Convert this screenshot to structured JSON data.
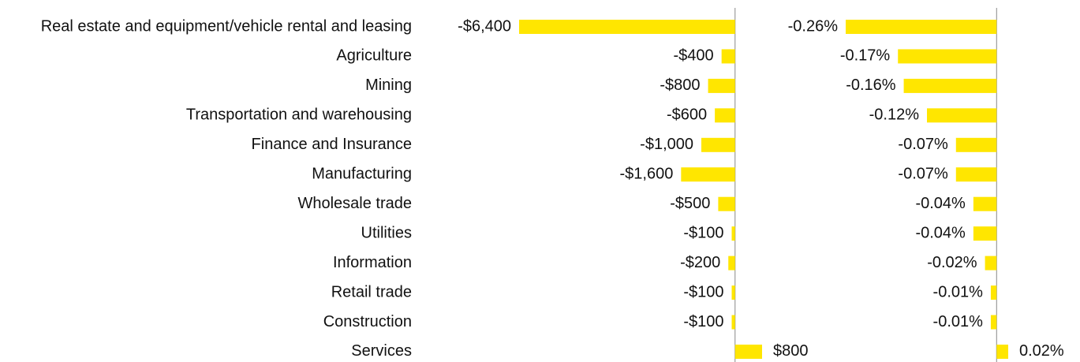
{
  "chart_data": [
    {
      "type": "bar",
      "orientation": "horizontal",
      "color": "#ffe600",
      "categories": [
        "Real estate and equipment/vehicle rental and leasing",
        "Agriculture",
        "Mining",
        "Transportation and warehousing",
        "Finance and Insurance",
        "Manufacturing",
        "Wholesale trade",
        "Utilities",
        "Information",
        "Retail trade",
        "Construction",
        "Services"
      ],
      "values": [
        -6400,
        -400,
        -800,
        -600,
        -1000,
        -1600,
        -500,
        -100,
        -200,
        -100,
        -100,
        800
      ],
      "value_labels": [
        "-$6,400",
        "-$400",
        "-$800",
        "-$600",
        "-$1,000",
        "-$1,600",
        "-$500",
        "-$100",
        "-$200",
        "-$100",
        "-$100",
        "$800"
      ],
      "xlim": [
        -6400,
        800
      ]
    },
    {
      "type": "bar",
      "orientation": "horizontal",
      "color": "#ffe600",
      "values": [
        -0.26,
        -0.17,
        -0.16,
        -0.12,
        -0.07,
        -0.07,
        -0.04,
        -0.04,
        -0.02,
        -0.01,
        -0.01,
        0.02
      ],
      "value_labels": [
        "-0.26%",
        "-0.17%",
        "-0.16%",
        "-0.12%",
        "-0.07%",
        "-0.07%",
        "-0.04%",
        "-0.04%",
        "-0.02%",
        "-0.01%",
        "-0.01%",
        "0.02%"
      ],
      "xlim": [
        -0.26,
        0.02
      ]
    }
  ]
}
